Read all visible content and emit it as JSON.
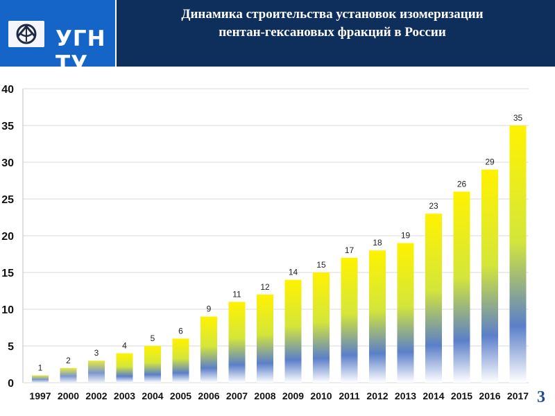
{
  "header": {
    "logo_text": "УГНТУ",
    "title_line1": "Динамика строительства установок изомеризации",
    "title_line2": "пентан-гексановых фракций в России"
  },
  "slide_number": "3",
  "colors": {
    "logo_bg": "#1565c8",
    "title_bg": "#0e2e5c",
    "bar_top": "#fff200",
    "bar_mid": "#5b7fc9",
    "bar_bottom": "#ffffff"
  },
  "chart_data": {
    "type": "bar",
    "title": "",
    "xlabel": "",
    "ylabel": "",
    "categories": [
      "1997",
      "2000",
      "2002",
      "2003",
      "2004",
      "2005",
      "2006",
      "2007",
      "2008",
      "2009",
      "2010",
      "2011",
      "2012",
      "2013",
      "2014",
      "2015",
      "2016",
      "2017"
    ],
    "values": [
      1,
      2,
      3,
      4,
      5,
      6,
      9,
      11,
      12,
      14,
      15,
      17,
      18,
      19,
      23,
      26,
      29,
      35
    ],
    "ylim": [
      0,
      40
    ],
    "yticks": [
      0,
      5,
      10,
      15,
      20,
      25,
      30,
      35,
      40
    ],
    "grid": true,
    "data_labels": true
  }
}
